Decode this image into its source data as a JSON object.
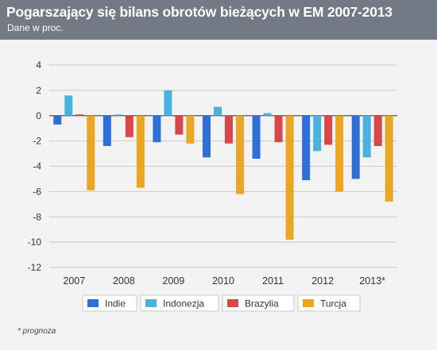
{
  "header": {
    "title": "Pogarszający się bilans obrotów bieżących w EM 2007-2013",
    "subtitle": "Dane w proc."
  },
  "footnote": "* prognoza",
  "colors": {
    "header_bg": "#737a85",
    "plot_bg": "#f3f3f4",
    "grid": "#c9c9c9",
    "zero_line": "#555555"
  },
  "chart_data": {
    "type": "bar",
    "categories": [
      "2007",
      "2008",
      "2009",
      "2010",
      "2011",
      "2012",
      "2013*"
    ],
    "ylim": [
      -12,
      4
    ],
    "yticks": [
      4,
      2,
      0,
      -2,
      -4,
      -6,
      -8,
      -10,
      -12
    ],
    "grid": true,
    "legend_position": "bottom",
    "series": [
      {
        "name": "Indie",
        "color": "#2f6fd8",
        "values": [
          -0.7,
          -2.4,
          -2.1,
          -3.3,
          -3.4,
          -5.1,
          -5.0
        ]
      },
      {
        "name": "Indonezja",
        "color": "#4ab2de",
        "values": [
          1.6,
          0.1,
          2.0,
          0.7,
          0.2,
          -2.8,
          -3.3
        ]
      },
      {
        "name": "Brazylia",
        "color": "#d6484a",
        "values": [
          0.1,
          -1.7,
          -1.5,
          -2.2,
          -2.1,
          -2.3,
          -2.4
        ]
      },
      {
        "name": "Turcja",
        "color": "#eaa625",
        "values": [
          -5.9,
          -5.7,
          -2.2,
          -6.2,
          -9.8,
          -6.0,
          -6.8
        ]
      }
    ]
  }
}
